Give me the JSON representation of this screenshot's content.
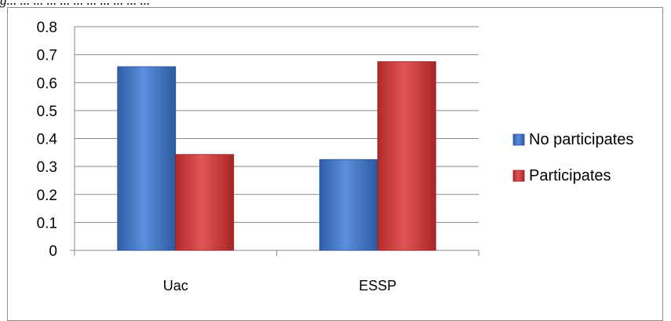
{
  "header": {
    "caption": "g... ... ... ... ... ... ... ... ... ... ..."
  },
  "chart_data": {
    "type": "bar",
    "title": "",
    "xlabel": "",
    "ylabel": "",
    "categories": [
      "Uac",
      "ESSP"
    ],
    "series": [
      {
        "name": "No participates",
        "values": [
          0.657,
          0.325
        ],
        "color": "#3f76c6"
      },
      {
        "name": "Participates",
        "values": [
          0.343,
          0.675
        ],
        "color": "#d43a3a"
      }
    ],
    "ylim": [
      0,
      0.8
    ],
    "yticks": [
      "0",
      "0.1",
      "0.2",
      "0.3",
      "0.4",
      "0.5",
      "0.6",
      "0.7",
      "0.8"
    ],
    "grid": true,
    "legend": "right"
  }
}
